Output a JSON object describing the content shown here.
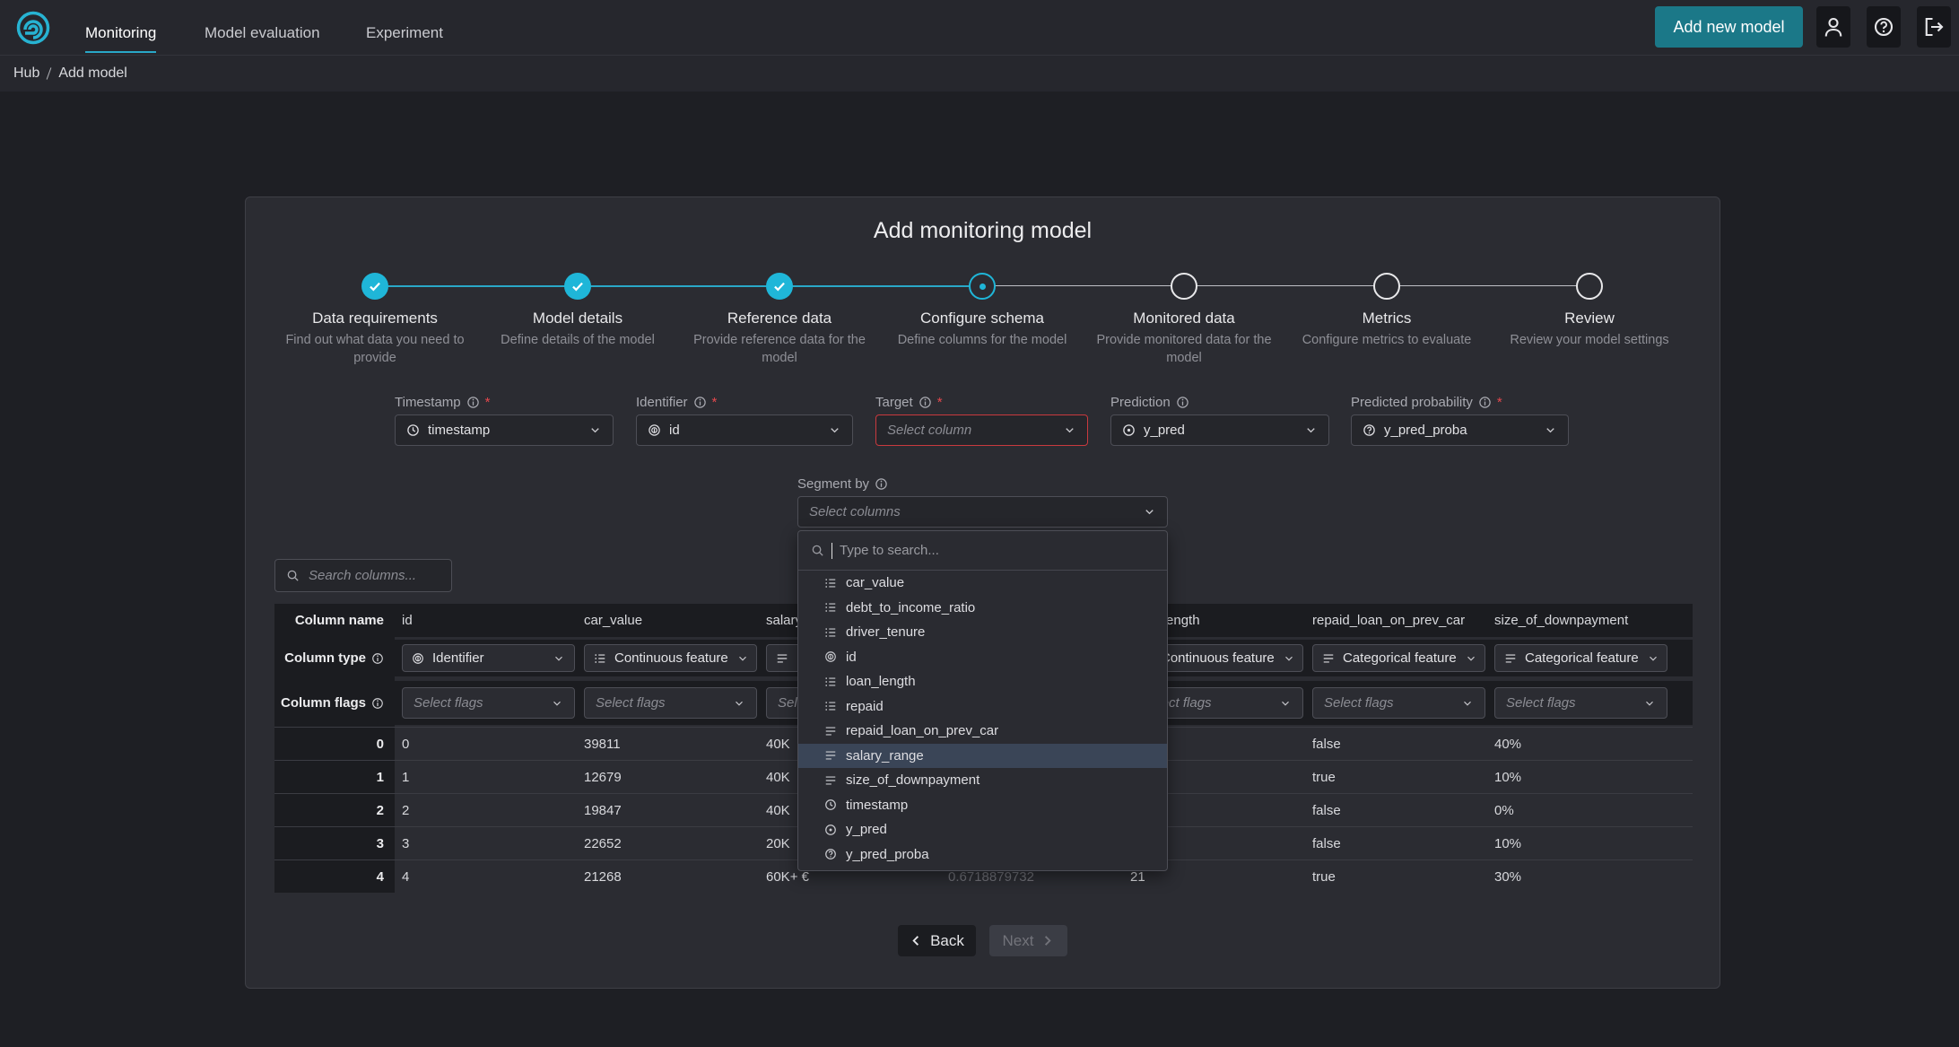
{
  "nav": {
    "tabs": [
      "Monitoring",
      "Model evaluation",
      "Experiment"
    ],
    "active_tab": 0,
    "add_button": "Add new model"
  },
  "breadcrumb": [
    "Hub",
    "Add model"
  ],
  "title": "Add monitoring model",
  "steps": [
    {
      "title": "Data requirements",
      "description": "Find out what data you need to provide",
      "status": "done"
    },
    {
      "title": "Model details",
      "description": "Define details of the model",
      "status": "done"
    },
    {
      "title": "Reference data",
      "description": "Provide reference data for the model",
      "status": "done"
    },
    {
      "title": "Configure schema",
      "description": "Define columns for the model",
      "status": "current"
    },
    {
      "title": "Monitored data",
      "description": "Provide monitored data for the model",
      "status": "todo"
    },
    {
      "title": "Metrics",
      "description": "Configure metrics to evaluate",
      "status": "todo"
    },
    {
      "title": "Review",
      "description": "Review your model settings",
      "status": "todo"
    }
  ],
  "required_mark": "*",
  "fields": [
    {
      "label": "Timestamp",
      "value": "timestamp",
      "icon": "time",
      "required": true
    },
    {
      "label": "Identifier",
      "value": "id",
      "icon": "identifier",
      "required": true
    },
    {
      "label": "Target",
      "placeholder": "Select column",
      "required": true,
      "error": true
    },
    {
      "label": "Prediction",
      "value": "y_pred",
      "icon": "prediction",
      "required": false
    },
    {
      "label": "Predicted probability",
      "value": "y_pred_proba",
      "icon": "probability",
      "required": true
    }
  ],
  "segment": {
    "label": "Segment by",
    "placeholder": "Select columns"
  },
  "dropdown": {
    "search_placeholder": "Type to search...",
    "highlighted": 7,
    "options": [
      {
        "label": "car_value",
        "kind": "continuous"
      },
      {
        "label": "debt_to_income_ratio",
        "kind": "continuous"
      },
      {
        "label": "driver_tenure",
        "kind": "continuous"
      },
      {
        "label": "id",
        "kind": "identifier"
      },
      {
        "label": "loan_length",
        "kind": "continuous"
      },
      {
        "label": "repaid",
        "kind": "continuous"
      },
      {
        "label": "repaid_loan_on_prev_car",
        "kind": "categorical"
      },
      {
        "label": "salary_range",
        "kind": "categorical"
      },
      {
        "label": "size_of_downpayment",
        "kind": "categorical"
      },
      {
        "label": "timestamp",
        "kind": "time"
      },
      {
        "label": "y_pred",
        "kind": "prediction"
      },
      {
        "label": "y_pred_proba",
        "kind": "probability"
      }
    ]
  },
  "column_search_placeholder": "Search columns...",
  "table": {
    "row_headers": [
      "Column name",
      "Column type",
      "Column flags"
    ],
    "index": [
      "0",
      "1",
      "2",
      "3",
      "4"
    ],
    "columns": [
      {
        "name": "id",
        "type": "Identifier",
        "kind": "identifier",
        "flags_placeholder": "Select flags",
        "values": [
          "0",
          "1",
          "2",
          "3",
          "4"
        ]
      },
      {
        "name": "car_value",
        "type": "Continuous feature",
        "kind": "continuous",
        "flags_placeholder": "Select flags",
        "values": [
          "39811",
          "12679",
          "19847",
          "22652",
          "21268"
        ]
      },
      {
        "name": "salary_range",
        "type": null,
        "kind": "categorical",
        "flags_placeholder": "Select flags",
        "values": [
          "40K",
          "40K",
          "40K",
          "20K",
          "60K+ €"
        ]
      },
      {
        "name": null,
        "type": null,
        "kind": null,
        "flags_placeholder": null,
        "values": [
          null,
          null,
          null,
          null,
          "0.6718879732"
        ]
      },
      {
        "name": "loan_length",
        "type": "Continuous feature",
        "kind": "continuous",
        "flags_placeholder": "Select flags",
        "values": [
          null,
          null,
          null,
          null,
          "21"
        ]
      },
      {
        "name": "repaid_loan_on_prev_car",
        "type": "Categorical feature",
        "kind": "categorical",
        "flags_placeholder": "Select flags",
        "values": [
          "false",
          "true",
          "false",
          "false",
          "true"
        ]
      },
      {
        "name": "size_of_downpayment",
        "type": "Categorical feature",
        "kind": "categorical",
        "flags_placeholder": "Select flags",
        "values": [
          "40%",
          "10%",
          "0%",
          "10%",
          "30%"
        ]
      }
    ]
  },
  "buttons": {
    "back": "Back",
    "next": "Next"
  }
}
